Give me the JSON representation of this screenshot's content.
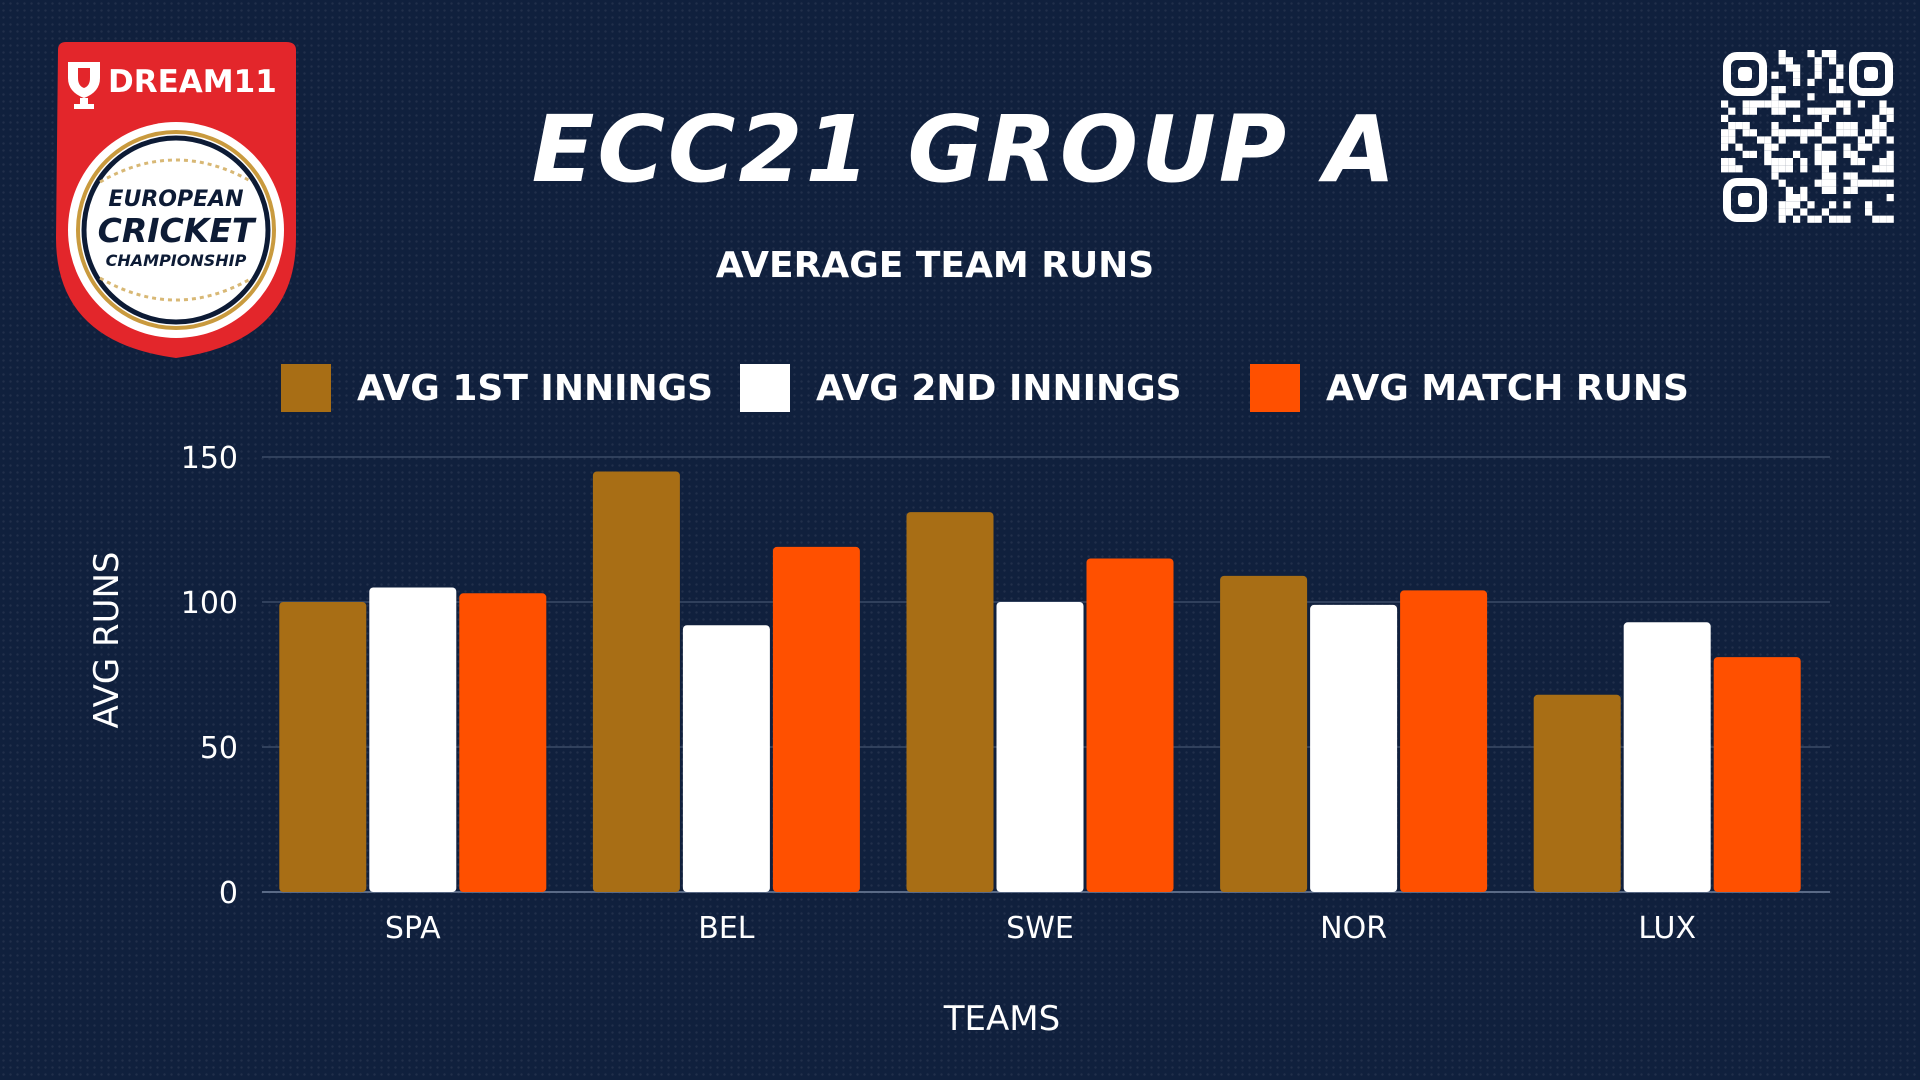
{
  "header": {
    "title": "ECC21 GROUP A",
    "subtitle": "AVERAGE TEAM RUNS"
  },
  "logo": {
    "brand": "DREAM11",
    "line1": "EUROPEAN",
    "line2": "CRICKET",
    "line3": "CHAMPIONSHIP",
    "colors": {
      "badge": "#e3262b",
      "ring": "#0d1b35",
      "gold": "#c99a3e"
    }
  },
  "qr": {
    "icon": "qr-code-icon"
  },
  "colors": {
    "background": "#10203d",
    "series1": "#a86e15",
    "series2": "#ffffff",
    "series3": "#ff5000",
    "gridline": "#3a4a66"
  },
  "chart_data": {
    "type": "bar",
    "categories": [
      "SPA",
      "BEL",
      "SWE",
      "NOR",
      "LUX"
    ],
    "series": [
      {
        "name": "AVG 1ST INNINGS",
        "color": "#a86e15",
        "values": [
          100,
          145,
          131,
          109,
          68
        ]
      },
      {
        "name": "AVG 2ND INNINGS",
        "color": "#ffffff",
        "values": [
          105,
          92,
          100,
          99,
          93
        ]
      },
      {
        "name": "AVG MATCH RUNS",
        "color": "#ff5000",
        "values": [
          103,
          119,
          115,
          104,
          81
        ]
      }
    ],
    "xlabel": "TEAMS",
    "ylabel": "AVG RUNS",
    "ylim": [
      0,
      150
    ],
    "yticks": [
      0,
      50,
      100,
      150
    ],
    "grid": true,
    "legend": "top"
  }
}
